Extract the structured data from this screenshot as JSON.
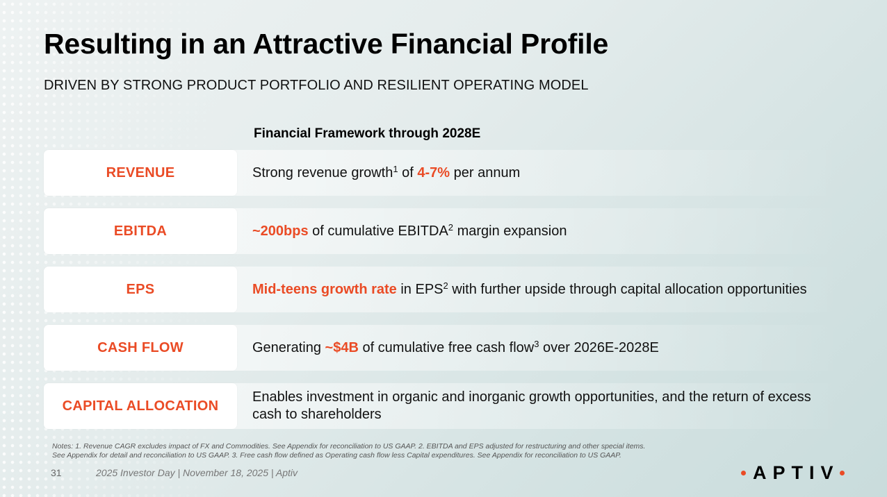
{
  "slide": {
    "title": "Resulting in an Attractive Financial Profile",
    "subtitle": "DRIVEN BY STRONG PRODUCT PORTFOLIO AND RESILIENT OPERATING MODEL",
    "framework_heading": "Financial Framework through 2028E"
  },
  "rows": [
    {
      "label": "REVENUE",
      "parts": [
        "Strong revenue growth",
        "1",
        " of ",
        "4-7%",
        " per annum"
      ]
    },
    {
      "label": "EBITDA",
      "parts": [
        "~200bps",
        " of cumulative EBITDA",
        "2",
        " margin expansion"
      ]
    },
    {
      "label": "EPS",
      "parts": [
        "Mid-teens growth rate",
        " in EPS",
        "2",
        " with further upside through capital allocation opportunities"
      ]
    },
    {
      "label": "CASH FLOW",
      "parts": [
        "Generating ",
        "~$4B",
        " of cumulative free cash flow",
        "3",
        " over 2026E-2028E"
      ]
    },
    {
      "label": "CAPITAL ALLOCATION",
      "parts": [
        "Enables investment in organic and inorganic growth opportunities, and the return of excess cash to shareholders"
      ]
    }
  ],
  "footer": {
    "notes_line1": "Notes: 1. Revenue CAGR excludes impact of FX and Commodities. See Appendix for reconciliation to US GAAP. 2. EBITDA and EPS adjusted for restructuring and other special items.",
    "notes_line2": "See Appendix for detail and reconciliation to US GAAP. 3. Free cash flow defined as Operating cash flow less Capital expenditures. See Appendix for reconciliation to US GAAP.",
    "page_number": "31",
    "event_text": "2025 Investor Day | November 18, 2025 | Aptiv",
    "logo_text": "APTIV"
  },
  "colors": {
    "accent": "#ea4b25",
    "text": "#111111"
  }
}
